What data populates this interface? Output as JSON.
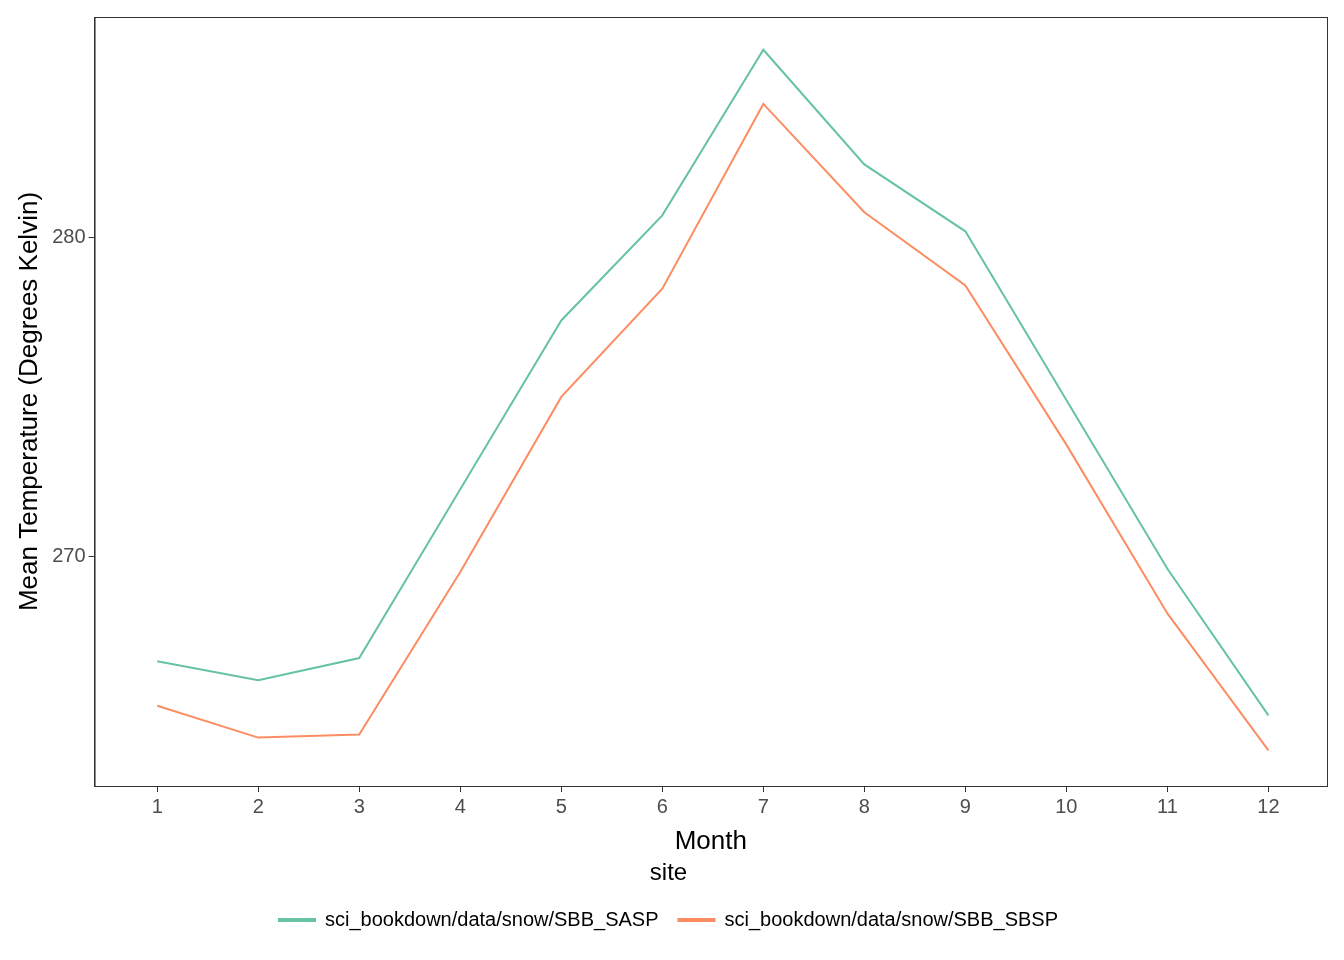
{
  "chart_data": {
    "type": "line",
    "x_label": "Month",
    "y_label": "Mean Temperature (Degrees Kelvin)",
    "legend_title": "site",
    "legend": "bottom",
    "grid": false,
    "x": [
      1,
      2,
      3,
      4,
      5,
      6,
      7,
      8,
      9,
      10,
      11,
      12
    ],
    "xlim": [
      0.38,
      12.58
    ],
    "xticks": [
      1,
      2,
      3,
      4,
      5,
      6,
      7,
      8,
      9,
      10,
      11,
      12
    ],
    "ylim": [
      262.78,
      286.93
    ],
    "yticks": [
      270,
      280
    ],
    "series": [
      {
        "name": "sci_bookdown/data/snow/SBB_SASP",
        "color": "#66c2a5",
        "values": [
          266.7,
          266.1,
          266.8,
          272.1,
          277.4,
          280.7,
          285.9,
          282.3,
          280.2,
          274.9,
          269.6,
          265.0
        ]
      },
      {
        "name": "sci_bookdown/data/snow/SBB_SBSP",
        "color": "#fc8d62",
        "values": [
          265.3,
          264.3,
          264.4,
          269.5,
          275.0,
          278.4,
          284.2,
          280.8,
          278.5,
          273.5,
          268.2,
          263.9
        ]
      }
    ]
  }
}
